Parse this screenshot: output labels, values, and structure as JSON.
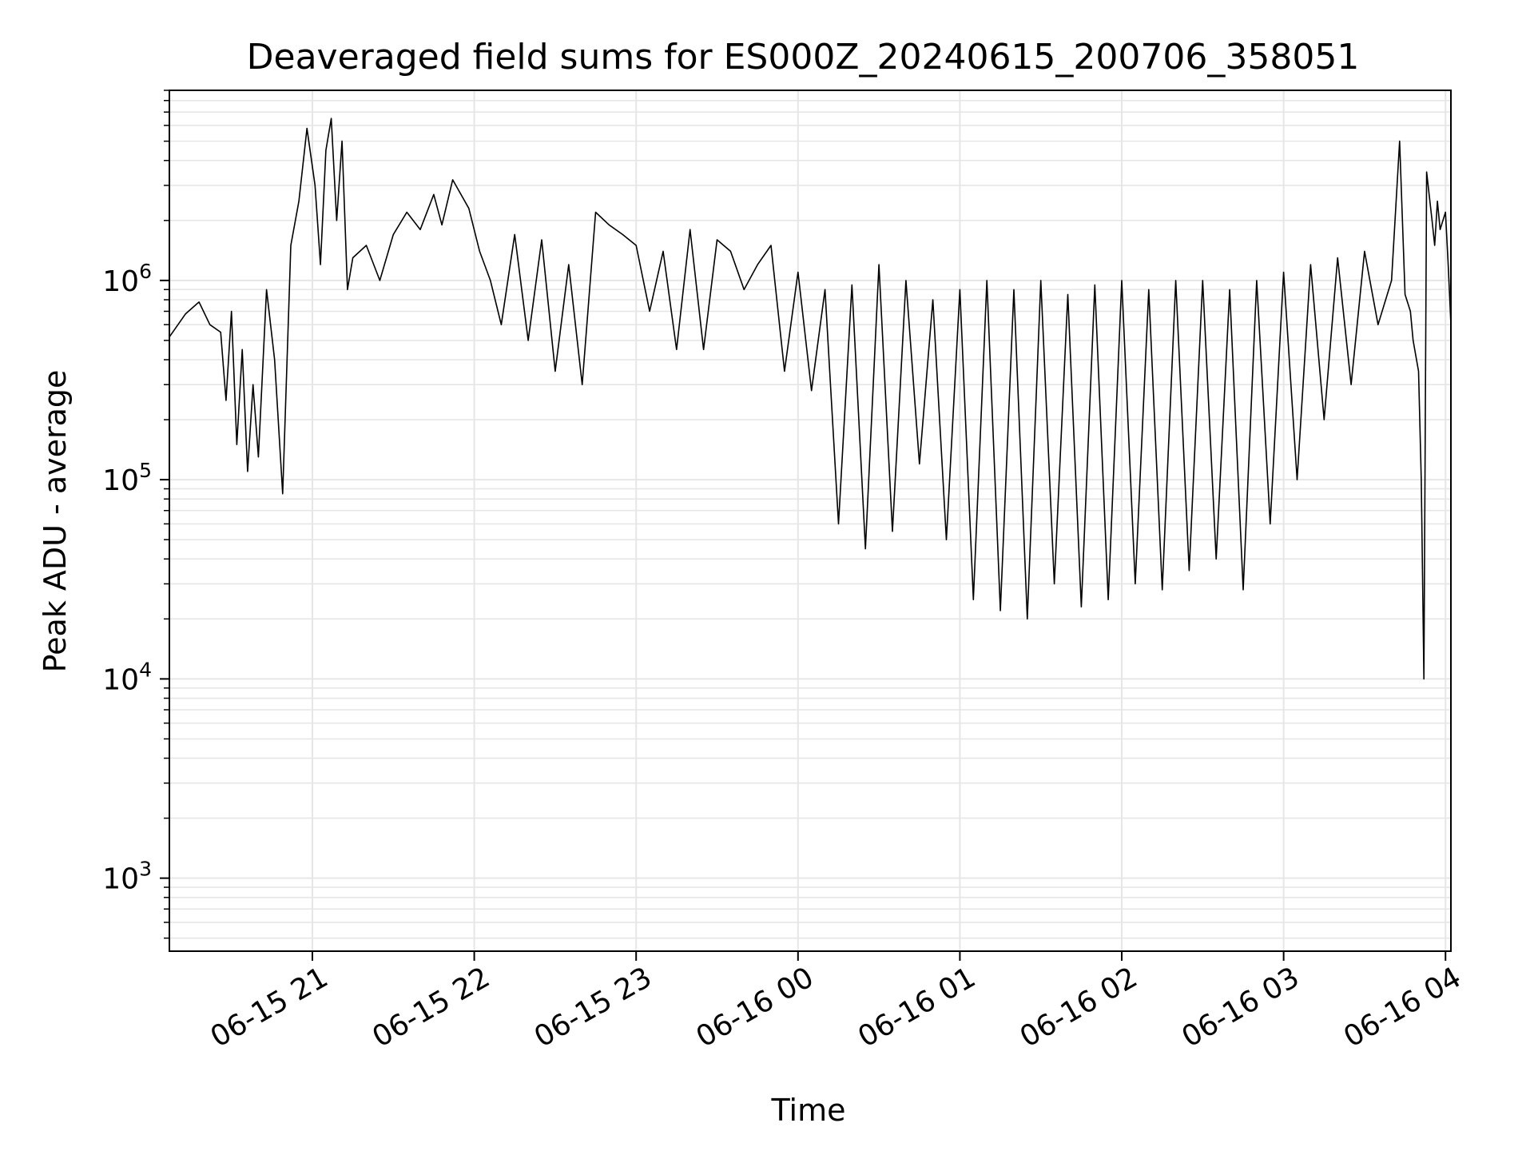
{
  "chart_data": {
    "type": "line",
    "title": "Deaveraged field sums for ES000Z_20240615_200706_358051",
    "xlabel": "Time",
    "ylabel": "Peak ADU - average",
    "y_scale": "log",
    "grid": true,
    "grid_color": "#e6e6e6",
    "line_color": "#000000",
    "background": "#ffffff",
    "xlim": [
      "2024-06-15 20:07",
      "2024-06-16 04:02"
    ],
    "ylim": [
      430,
      9000000
    ],
    "x_ticks": [
      "2024-06-15 21:00",
      "2024-06-15 22:00",
      "2024-06-15 23:00",
      "2024-06-16 00:00",
      "2024-06-16 01:00",
      "2024-06-16 02:00",
      "2024-06-16 03:00",
      "2024-06-16 04:00"
    ],
    "x_tick_labels": [
      "06-15 21",
      "06-15 22",
      "06-15 23",
      "06-16 00",
      "06-16 01",
      "06-16 02",
      "06-16 03",
      "06-16 04"
    ],
    "y_ticks": [
      {
        "value": 1000,
        "base": "10",
        "exp": "3"
      },
      {
        "value": 10000,
        "base": "10",
        "exp": "4"
      },
      {
        "value": 100000,
        "base": "10",
        "exp": "5"
      },
      {
        "value": 1000000,
        "base": "10",
        "exp": "6"
      }
    ],
    "series": [
      {
        "x": [
          "2024-06-15 20:07",
          "2024-06-15 20:13",
          "2024-06-15 20:18",
          "2024-06-15 20:22",
          "2024-06-15 20:26",
          "2024-06-15 20:28",
          "2024-06-15 20:30",
          "2024-06-15 20:32",
          "2024-06-15 20:34",
          "2024-06-15 20:36",
          "2024-06-15 20:38",
          "2024-06-15 20:40",
          "2024-06-15 20:43",
          "2024-06-15 20:46",
          "2024-06-15 20:49",
          "2024-06-15 20:52",
          "2024-06-15 20:55",
          "2024-06-15 20:58",
          "2024-06-15 21:01",
          "2024-06-15 21:03",
          "2024-06-15 21:05",
          "2024-06-15 21:07",
          "2024-06-15 21:09",
          "2024-06-15 21:11",
          "2024-06-15 21:13",
          "2024-06-15 21:15",
          "2024-06-15 21:20",
          "2024-06-15 21:25",
          "2024-06-15 21:30",
          "2024-06-15 21:35",
          "2024-06-15 21:40",
          "2024-06-15 21:45",
          "2024-06-15 21:48",
          "2024-06-15 21:52",
          "2024-06-15 21:58",
          "2024-06-15 22:02",
          "2024-06-15 22:06",
          "2024-06-15 22:10",
          "2024-06-15 22:15",
          "2024-06-15 22:20",
          "2024-06-15 22:25",
          "2024-06-15 22:30",
          "2024-06-15 22:35",
          "2024-06-15 22:40",
          "2024-06-15 22:45",
          "2024-06-15 22:50",
          "2024-06-15 22:55",
          "2024-06-15 23:00",
          "2024-06-15 23:05",
          "2024-06-15 23:10",
          "2024-06-15 23:15",
          "2024-06-15 23:20",
          "2024-06-15 23:25",
          "2024-06-15 23:30",
          "2024-06-15 23:35",
          "2024-06-15 23:40",
          "2024-06-15 23:45",
          "2024-06-15 23:50",
          "2024-06-15 23:55",
          "2024-06-16 00:00",
          "2024-06-16 00:05",
          "2024-06-16 00:10",
          "2024-06-16 00:15",
          "2024-06-16 00:20",
          "2024-06-16 00:25",
          "2024-06-16 00:30",
          "2024-06-16 00:35",
          "2024-06-16 00:40",
          "2024-06-16 00:45",
          "2024-06-16 00:50",
          "2024-06-16 00:55",
          "2024-06-16 01:00",
          "2024-06-16 01:05",
          "2024-06-16 01:10",
          "2024-06-16 01:15",
          "2024-06-16 01:20",
          "2024-06-16 01:25",
          "2024-06-16 01:30",
          "2024-06-16 01:35",
          "2024-06-16 01:40",
          "2024-06-16 01:45",
          "2024-06-16 01:50",
          "2024-06-16 01:55",
          "2024-06-16 02:00",
          "2024-06-16 02:05",
          "2024-06-16 02:10",
          "2024-06-16 02:15",
          "2024-06-16 02:20",
          "2024-06-16 02:25",
          "2024-06-16 02:30",
          "2024-06-16 02:35",
          "2024-06-16 02:40",
          "2024-06-16 02:45",
          "2024-06-16 02:50",
          "2024-06-16 02:55",
          "2024-06-16 03:00",
          "2024-06-16 03:05",
          "2024-06-16 03:10",
          "2024-06-16 03:15",
          "2024-06-16 03:20",
          "2024-06-16 03:25",
          "2024-06-16 03:30",
          "2024-06-16 03:35",
          "2024-06-16 03:40",
          "2024-06-16 03:43",
          "2024-06-16 03:45",
          "2024-06-16 03:47",
          "2024-06-16 03:48",
          "2024-06-16 03:50",
          "2024-06-16 03:51",
          "2024-06-16 03:52",
          "2024-06-16 03:53",
          "2024-06-16 03:55",
          "2024-06-16 03:56",
          "2024-06-16 03:57",
          "2024-06-16 03:58",
          "2024-06-16 04:00",
          "2024-06-16 04:01",
          "2024-06-16 04:02"
        ],
        "y": [
          520000,
          680000,
          780000,
          600000,
          550000,
          250000,
          700000,
          150000,
          450000,
          110000,
          300000,
          130000,
          900000,
          400000,
          85000,
          1500000,
          2500000,
          5800000,
          3000000,
          1200000,
          4500000,
          6500000,
          2000000,
          5000000,
          900000,
          1300000,
          1500000,
          1000000,
          1700000,
          2200000,
          1800000,
          2700000,
          1900000,
          3200000,
          2300000,
          1400000,
          1000000,
          600000,
          1700000,
          500000,
          1600000,
          350000,
          1200000,
          300000,
          2200000,
          1900000,
          1700000,
          1500000,
          700000,
          1400000,
          450000,
          1800000,
          450000,
          1600000,
          1400000,
          900000,
          1200000,
          1500000,
          350000,
          1100000,
          280000,
          900000,
          60000,
          950000,
          45000,
          1200000,
          55000,
          1000000,
          120000,
          800000,
          50000,
          900000,
          25000,
          1000000,
          22000,
          900000,
          20000,
          1000000,
          30000,
          850000,
          23000,
          950000,
          25000,
          1000000,
          30000,
          900000,
          28000,
          1000000,
          35000,
          1000000,
          40000,
          900000,
          28000,
          1000000,
          60000,
          1100000,
          100000,
          1200000,
          200000,
          1300000,
          300000,
          1400000,
          600000,
          1000000,
          5000000,
          850000,
          700000,
          500000,
          350000,
          100000,
          10000,
          3500000,
          2000000,
          1500000,
          2500000,
          1800000,
          2200000,
          1200000,
          600000
        ],
        "color": "#000000"
      }
    ]
  }
}
